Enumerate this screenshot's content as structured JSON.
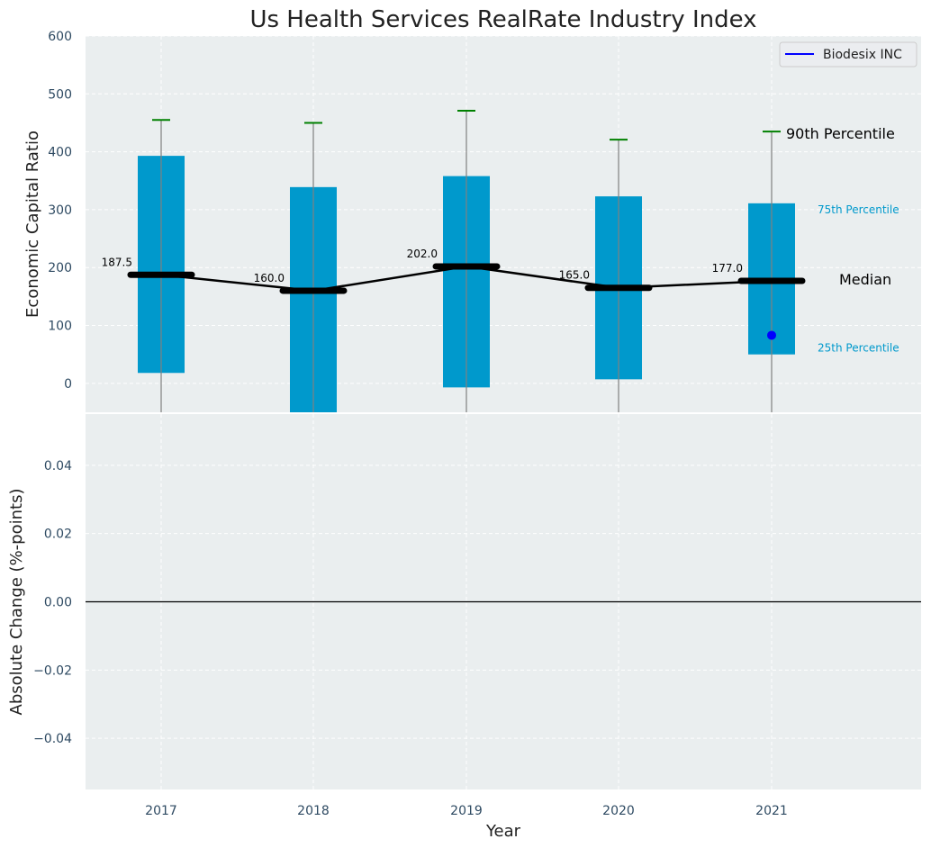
{
  "chart_data": [
    {
      "type": "box",
      "title": "Us Health Services RealRate Industry Index",
      "ylabel": "Economic Capital Ratio",
      "ylim": [
        -50,
        600
      ],
      "yticks": [
        0,
        100,
        200,
        300,
        400,
        500,
        600
      ],
      "grid": true,
      "categories": [
        "2017",
        "2018",
        "2019",
        "2020",
        "2021"
      ],
      "p25": [
        18,
        -50,
        -7,
        7,
        50
      ],
      "p75": [
        393,
        339,
        358,
        323,
        311
      ],
      "p90": [
        455,
        450,
        471,
        421,
        435
      ],
      "median": [
        187.5,
        160.0,
        202.0,
        165.0,
        177.0
      ],
      "median_labels": [
        "187.5",
        "160.0",
        "202.0",
        "165.0",
        "177.0"
      ],
      "series": [
        {
          "name": "Biodesix INC",
          "x": [
            "2021"
          ],
          "values": [
            83
          ],
          "color": "#0000ff"
        }
      ],
      "legend": {
        "position": "top-right",
        "entries": [
          "Biodesix INC"
        ]
      },
      "annotations": {
        "p90": "90th Percentile",
        "p75": "75th Percentile",
        "median": "Median",
        "p25": "25th Percentile"
      },
      "colors": {
        "box": "#0099cc",
        "whisker_cap": "#008000",
        "median_line": "#000000",
        "panel_bg": "#eaeeef",
        "grid": "#ffffff"
      }
    },
    {
      "type": "line",
      "ylabel": "Absolute Change (%-points)",
      "xlabel": "Year",
      "ylim": [
        -0.055,
        0.055
      ],
      "yticks": [
        -0.04,
        -0.02,
        0.0,
        0.02,
        0.04
      ],
      "ytick_labels": [
        "−0.04",
        "−0.02",
        "0.00",
        "0.02",
        "0.04"
      ],
      "categories": [
        "2017",
        "2018",
        "2019",
        "2020",
        "2021"
      ],
      "zero_line": true,
      "grid": true
    }
  ]
}
